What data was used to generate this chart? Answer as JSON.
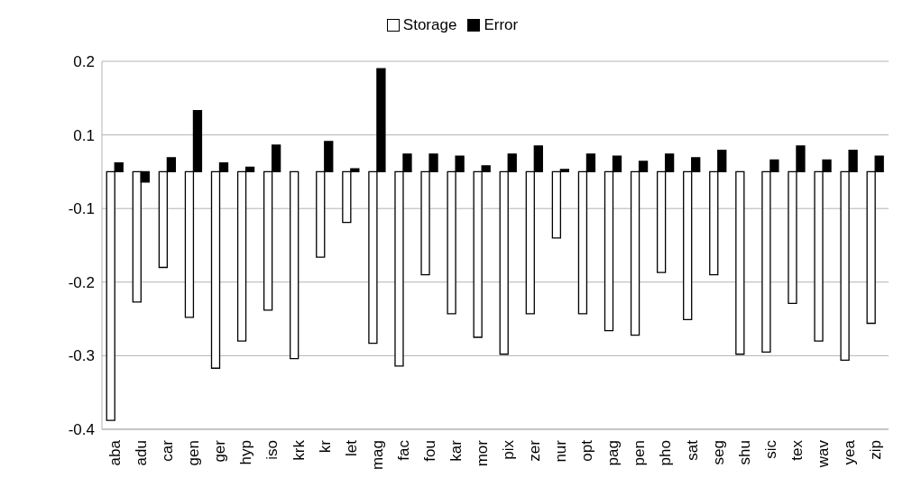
{
  "chart_data": {
    "type": "bar",
    "categories": [
      "aba",
      "adu",
      "car",
      "gen",
      "ger",
      "hyp",
      "iso",
      "krk",
      "kr",
      "let",
      "mag",
      "fac",
      "fou",
      "kar",
      "mor",
      "pix",
      "zer",
      "nur",
      "opt",
      "pag",
      "pen",
      "pho",
      "sat",
      "seg",
      "shu",
      "sic",
      "tex",
      "wav",
      "yea",
      "zip"
    ],
    "series": [
      {
        "name": "Storage",
        "color": "#ffffff",
        "values": [
          -0.338,
          -0.177,
          -0.13,
          -0.198,
          -0.267,
          -0.23,
          -0.188,
          -0.254,
          -0.116,
          -0.069,
          -0.233,
          -0.264,
          -0.14,
          -0.193,
          -0.225,
          -0.248,
          -0.193,
          -0.09,
          -0.193,
          -0.216,
          -0.222,
          -0.137,
          -0.201,
          -0.14,
          -0.248,
          -0.245,
          -0.179,
          -0.23,
          -0.256,
          -0.206
        ]
      },
      {
        "name": "Error",
        "color": "#000000",
        "values": [
          0.012,
          -0.014,
          0.019,
          0.083,
          0.012,
          0.006,
          0.036,
          0,
          0.041,
          0.004,
          0.14,
          0.024,
          0.024,
          0.021,
          0.008,
          0.024,
          0.035,
          0.003,
          0.024,
          0.021,
          0.014,
          0.024,
          0.019,
          0.029,
          0,
          0.016,
          0.035,
          0.016,
          0.029,
          0.021
        ]
      }
    ],
    "ylim": [
      -0.35,
      0.15
    ],
    "yticks": [
      {
        "value": 0.15,
        "label": "0.2"
      },
      {
        "value": 0.05,
        "label": "0.1"
      },
      {
        "value": -0.05,
        "label": "-0.1"
      },
      {
        "value": -0.15,
        "label": "-0.2"
      },
      {
        "value": -0.25,
        "label": "-0.3"
      },
      {
        "value": -0.35,
        "label": "-0.4"
      }
    ],
    "grid": "y",
    "legend": "top"
  }
}
